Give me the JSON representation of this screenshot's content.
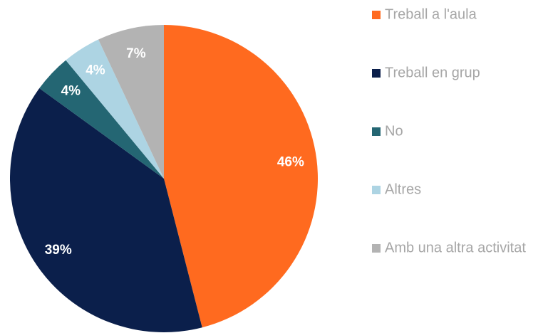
{
  "chart_data": {
    "type": "pie",
    "categories": [
      "Treball a l'aula",
      "Treball en grup",
      "No",
      "Altres",
      "Amb una altra activitat"
    ],
    "values": [
      46,
      39,
      4,
      4,
      7
    ],
    "value_labels": [
      "46%",
      "39%",
      "4%",
      "4%",
      "7%"
    ],
    "colors": [
      "#ff6a1f",
      "#0b1f4b",
      "#246673",
      "#add4e3",
      "#b3b3b3"
    ],
    "legend": "right"
  }
}
